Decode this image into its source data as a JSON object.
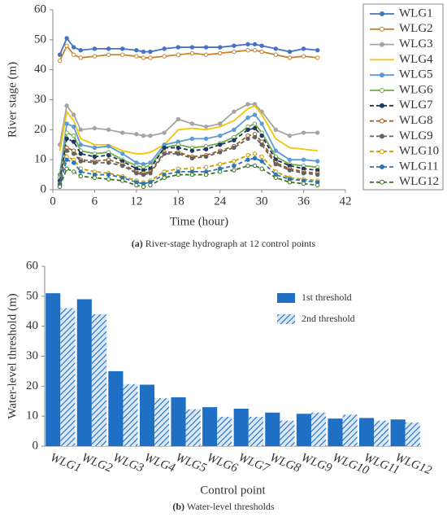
{
  "chart_data": [
    {
      "type": "line",
      "xlabel": "Time (hour)",
      "ylabel": "River stage (m)",
      "caption_label": "(a)",
      "caption": "River-stage hydrograph at 12 control points",
      "xlim": [
        0,
        42
      ],
      "xticks": [
        0,
        6,
        12,
        18,
        24,
        30,
        36,
        42
      ],
      "ylim": [
        0,
        60
      ],
      "yticks": [
        0,
        10,
        20,
        30,
        40,
        50,
        60
      ],
      "legend": "outside right",
      "x": [
        1,
        2,
        3,
        4,
        6,
        8,
        10,
        12,
        13,
        14,
        16,
        18,
        20,
        22,
        24,
        26,
        28,
        29,
        30,
        32,
        34,
        36,
        38
      ],
      "series": [
        {
          "name": "WLG1",
          "color": "#4472c4",
          "marker": "filled",
          "dash": false,
          "values": [
            45,
            50.5,
            47.5,
            46.5,
            47,
            47,
            47,
            46.5,
            46,
            46,
            47,
            47.5,
            47.5,
            47.5,
            47.5,
            48,
            48.5,
            48.5,
            48,
            47,
            46,
            47,
            46.5
          ]
        },
        {
          "name": "WLG2",
          "color": "#c8832c",
          "marker": "open",
          "dash": false,
          "values": [
            43,
            48,
            45,
            44,
            44.5,
            45,
            45,
            44.5,
            44,
            44,
            44.5,
            45,
            45.5,
            45,
            45.5,
            46,
            46.5,
            46.5,
            46,
            45,
            44,
            44.5,
            44
          ]
        },
        {
          "name": "WLG3",
          "color": "#a5a5a5",
          "marker": "filled",
          "dash": false,
          "values": [
            15,
            28,
            25,
            20,
            20.5,
            20,
            19,
            18.5,
            18,
            18,
            19,
            23.5,
            22,
            21,
            22,
            26,
            28.5,
            28.5,
            26,
            20,
            18,
            19,
            19
          ]
        },
        {
          "name": "WLG4",
          "color": "#f2c500",
          "marker": "none",
          "dash": false,
          "values": [
            13,
            26,
            23,
            17,
            15,
            15,
            13,
            12,
            12,
            12.5,
            15,
            20,
            20.5,
            20,
            21,
            23,
            27,
            28,
            25,
            17,
            14,
            13.5,
            13
          ]
        },
        {
          "name": "WLG5",
          "color": "#5b9bd5",
          "marker": "filled",
          "dash": false,
          "values": [
            5,
            22,
            21,
            15,
            14,
            14.5,
            12,
            9,
            8.5,
            9,
            15,
            16,
            17,
            17,
            18,
            20,
            24,
            25,
            22,
            13,
            10,
            10,
            9.5
          ]
        },
        {
          "name": "WLG6",
          "color": "#70ad47",
          "marker": "open",
          "dash": false,
          "values": [
            4,
            19,
            18,
            13,
            12,
            12.5,
            10,
            8,
            7.5,
            8,
            14,
            15,
            14,
            14.5,
            15.5,
            17.5,
            21,
            22,
            19,
            11,
            8.5,
            8,
            7.5
          ]
        },
        {
          "name": "WLG7",
          "color": "#1f3864",
          "marker": "filled",
          "dash": true,
          "values": [
            3,
            17,
            16,
            12,
            11,
            11.5,
            9.5,
            7,
            6.5,
            7,
            14,
            14,
            13,
            13.5,
            15,
            16.5,
            20,
            20.5,
            18,
            10,
            8,
            7,
            6.5
          ]
        },
        {
          "name": "WLG8",
          "color": "#9c5b16",
          "marker": "open",
          "dash": true,
          "values": [
            2,
            14,
            13,
            10,
            9.5,
            10,
            8.5,
            6,
            5.5,
            6,
            12.5,
            12.5,
            11,
            11.5,
            13,
            14.5,
            18,
            18.5,
            16,
            9,
            7,
            6,
            5.5
          ]
        },
        {
          "name": "WLG9",
          "color": "#636363",
          "marker": "filled",
          "dash": true,
          "values": [
            2,
            13,
            12,
            9.5,
            9,
            9,
            8,
            5.5,
            5,
            5.5,
            12,
            12,
            10.5,
            11,
            12.5,
            14,
            17,
            17.5,
            15,
            8.5,
            6.5,
            5.5,
            5
          ]
        },
        {
          "name": "WLG10",
          "color": "#c89a00",
          "marker": "open",
          "dash": true,
          "values": [
            1.5,
            11,
            10,
            7,
            6,
            5.5,
            4.5,
            3,
            2.5,
            3,
            6,
            7,
            7,
            7.5,
            8.5,
            9.5,
            11.5,
            12,
            11,
            6,
            4,
            3.5,
            3
          ]
        },
        {
          "name": "WLG11",
          "color": "#2e75b6",
          "marker": "filled",
          "dash": true,
          "values": [
            1.5,
            10,
            9,
            6,
            5,
            5,
            4,
            2.5,
            2,
            2.5,
            5,
            6,
            6,
            6,
            7,
            8,
            10,
            10.5,
            9.5,
            5,
            3.5,
            3,
            2.5
          ]
        },
        {
          "name": "WLG12",
          "color": "#38761d",
          "marker": "open",
          "dash": true,
          "values": [
            1,
            7,
            6,
            4.5,
            4,
            3.5,
            3,
            1.5,
            1,
            1.5,
            4,
            5,
            5,
            5,
            6,
            6.5,
            8,
            8,
            7,
            4,
            2.5,
            2,
            1.5
          ]
        }
      ]
    },
    {
      "type": "bar",
      "xlabel": "Control point",
      "ylabel": "Water-level threshold (m)",
      "caption_label": "(b)",
      "caption": "Water-level thresholds",
      "ylim": [
        0,
        60
      ],
      "yticks": [
        0,
        10,
        20,
        30,
        40,
        50,
        60
      ],
      "legend": "upper right",
      "categories": [
        "WLG1",
        "WLG2",
        "WLG3",
        "WLG4",
        "WLG5",
        "WLG6",
        "WLG7",
        "WLG8",
        "WLG9",
        "WLG10",
        "WLG11",
        "WLG12"
      ],
      "series": [
        {
          "name": "1st threshold",
          "color": "#1f6fc5",
          "pattern": "solid",
          "values": [
            51,
            49,
            25,
            20.5,
            16.3,
            13,
            12.5,
            11.2,
            10.8,
            9.2,
            9.4,
            8.9
          ]
        },
        {
          "name": "2nd threshold",
          "color": "#1f6fc5",
          "pattern": "hatch",
          "values": [
            46,
            44,
            20.7,
            16,
            12.3,
            9.8,
            9.8,
            8.5,
            11.2,
            10.5,
            8.5,
            7.9
          ]
        }
      ]
    }
  ]
}
